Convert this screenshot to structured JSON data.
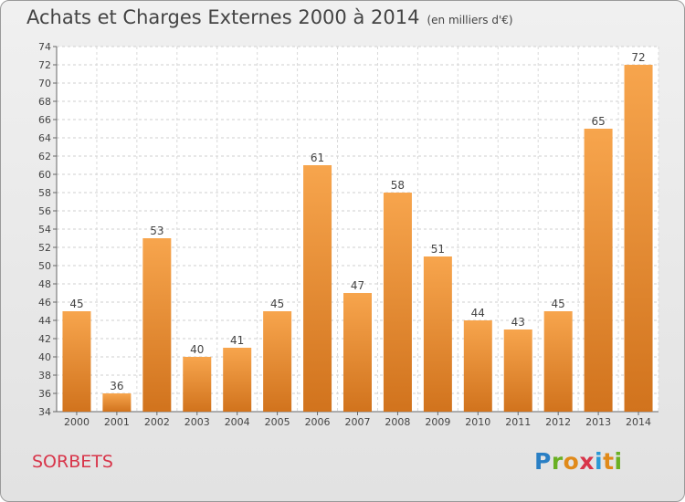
{
  "title": "Achats et Charges Externes 2000 à 2014",
  "subtitle": "(en milliers d'€)",
  "town": "SORBETS",
  "logo": {
    "text": "Proxiti",
    "letter_colors": [
      "#2a7fc4",
      "#6ab023",
      "#e08a1a",
      "#d8354a",
      "#2a9ad6",
      "#e08a1a",
      "#6ab023"
    ]
  },
  "colors": {
    "bar_top": "#f7a54d",
    "bar_bottom": "#d1731d",
    "title": "#444444",
    "town": "#d8354a"
  },
  "chart_data": {
    "type": "bar",
    "categories": [
      "2000",
      "2001",
      "2002",
      "2003",
      "2004",
      "2005",
      "2006",
      "2007",
      "2008",
      "2009",
      "2010",
      "2011",
      "2012",
      "2013",
      "2014"
    ],
    "values": [
      45,
      36,
      53,
      40,
      41,
      45,
      61,
      47,
      58,
      51,
      44,
      43,
      45,
      65,
      72
    ],
    "ylim": [
      34,
      74
    ],
    "yticks": [
      34,
      36,
      38,
      40,
      42,
      44,
      46,
      48,
      50,
      52,
      54,
      56,
      58,
      60,
      62,
      64,
      66,
      68,
      70,
      72,
      74
    ],
    "grid": true,
    "data_labels": true
  }
}
